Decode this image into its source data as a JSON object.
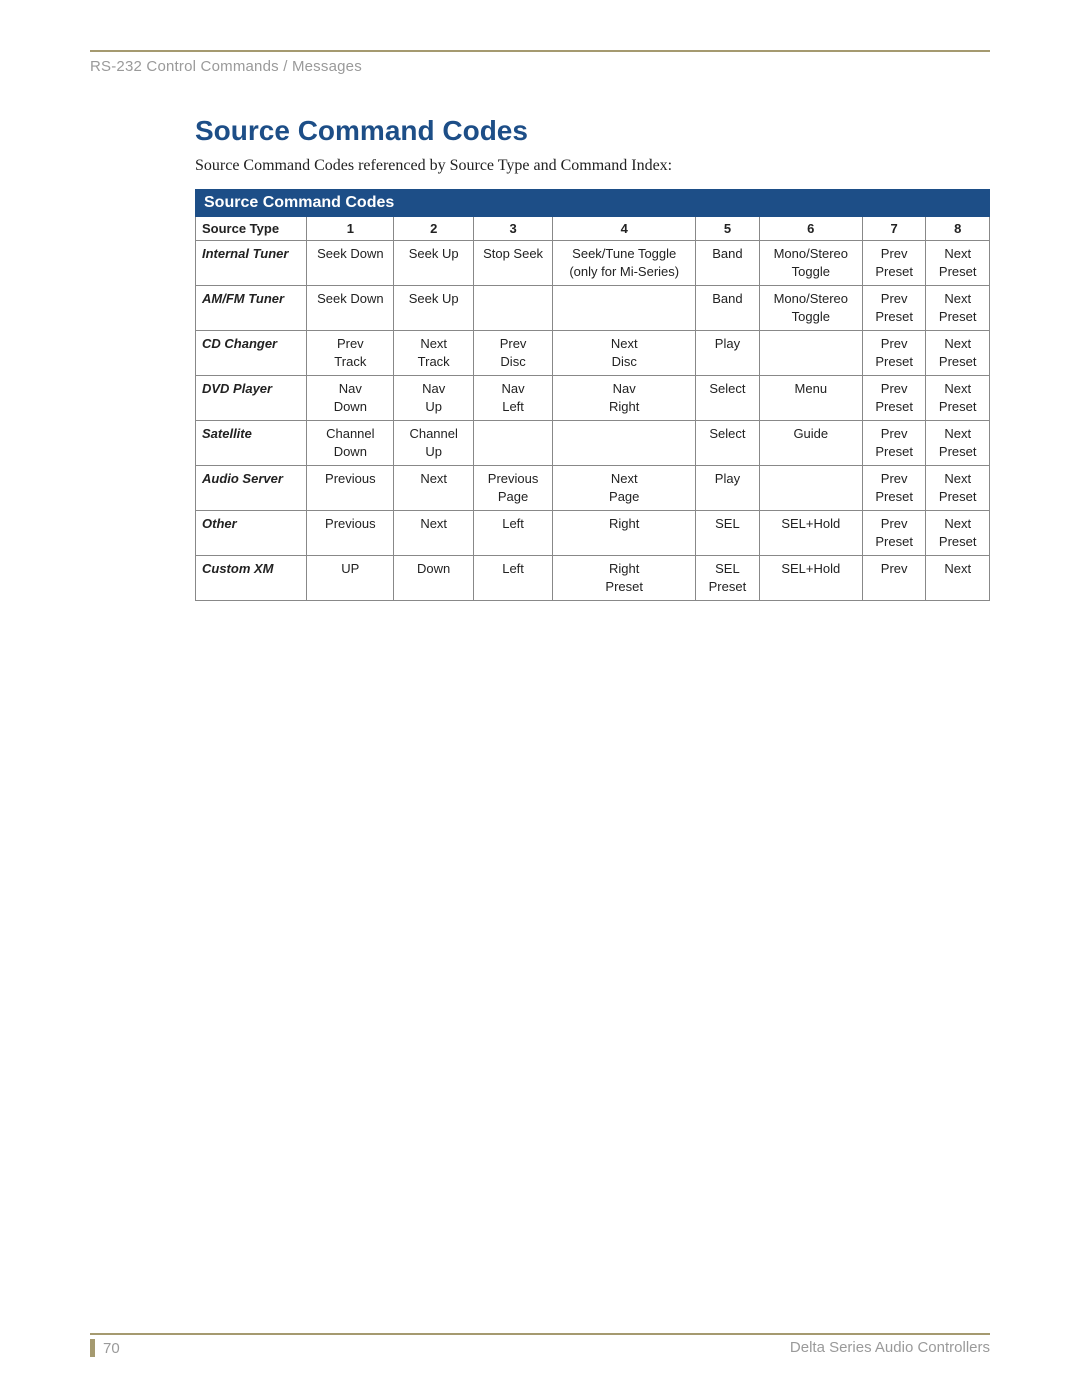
{
  "header": {
    "breadcrumb": "RS-232 Control Commands / Messages"
  },
  "section": {
    "title": "Source Command Codes",
    "subtitle": "Source Command Codes referenced by Source Type and Command Index:"
  },
  "table": {
    "banner": "Source Command Codes",
    "columns": [
      "Source Type",
      "1",
      "2",
      "3",
      "4",
      "5",
      "6",
      "7",
      "8"
    ],
    "rows": [
      {
        "label": "Internal Tuner",
        "cells": [
          "Seek Down",
          "Seek Up",
          "Stop Seek",
          "Seek/Tune Toggle\n(only for Mi-Series)",
          "Band",
          "Mono/Stereo\nToggle",
          "Prev\nPreset",
          "Next\nPreset"
        ]
      },
      {
        "label": "AM/FM Tuner",
        "cells": [
          "Seek Down",
          "Seek Up",
          "",
          "",
          "Band",
          "Mono/Stereo\nToggle",
          "Prev\nPreset",
          "Next\nPreset"
        ]
      },
      {
        "label": "CD Changer",
        "cells": [
          "Prev\nTrack",
          "Next\nTrack",
          "Prev\nDisc",
          "Next\nDisc",
          "Play",
          "",
          "Prev\nPreset",
          "Next\nPreset"
        ]
      },
      {
        "label": "DVD Player",
        "cells": [
          "Nav\nDown",
          "Nav\nUp",
          "Nav\nLeft",
          "Nav\nRight",
          "Select",
          "Menu",
          "Prev\nPreset",
          "Next\nPreset"
        ]
      },
      {
        "label": "Satellite",
        "cells": [
          "Channel\nDown",
          "Channel\nUp",
          "",
          "",
          "Select",
          "Guide",
          "Prev\nPreset",
          "Next\nPreset"
        ]
      },
      {
        "label": "Audio Server",
        "cells": [
          "Previous",
          "Next",
          "Previous\nPage",
          "Next\nPage",
          "Play",
          "",
          "Prev\nPreset",
          "Next\nPreset"
        ]
      },
      {
        "label": "Other",
        "cells": [
          "Previous",
          "Next",
          "Left",
          "Right",
          "SEL",
          "SEL+Hold",
          "Prev\nPreset",
          "Next\nPreset"
        ]
      },
      {
        "label": "Custom XM",
        "cells": [
          "UP",
          "Down",
          "Left",
          "Right\nPreset",
          "SEL\nPreset",
          "SEL+Hold",
          "Prev",
          "Next"
        ]
      }
    ]
  },
  "footer": {
    "page_number": "70",
    "right_text": "Delta Series Audio Controllers"
  },
  "colors": {
    "accent_blue": "#1d4e87",
    "rule_gold": "#a59a70",
    "muted_text": "#9a9a9a",
    "border_gray": "#888888",
    "background": "#ffffff"
  },
  "typography": {
    "title_fontsize_pt": 21,
    "body_fontsize_pt": 10,
    "header_fontsize_pt": 11
  }
}
